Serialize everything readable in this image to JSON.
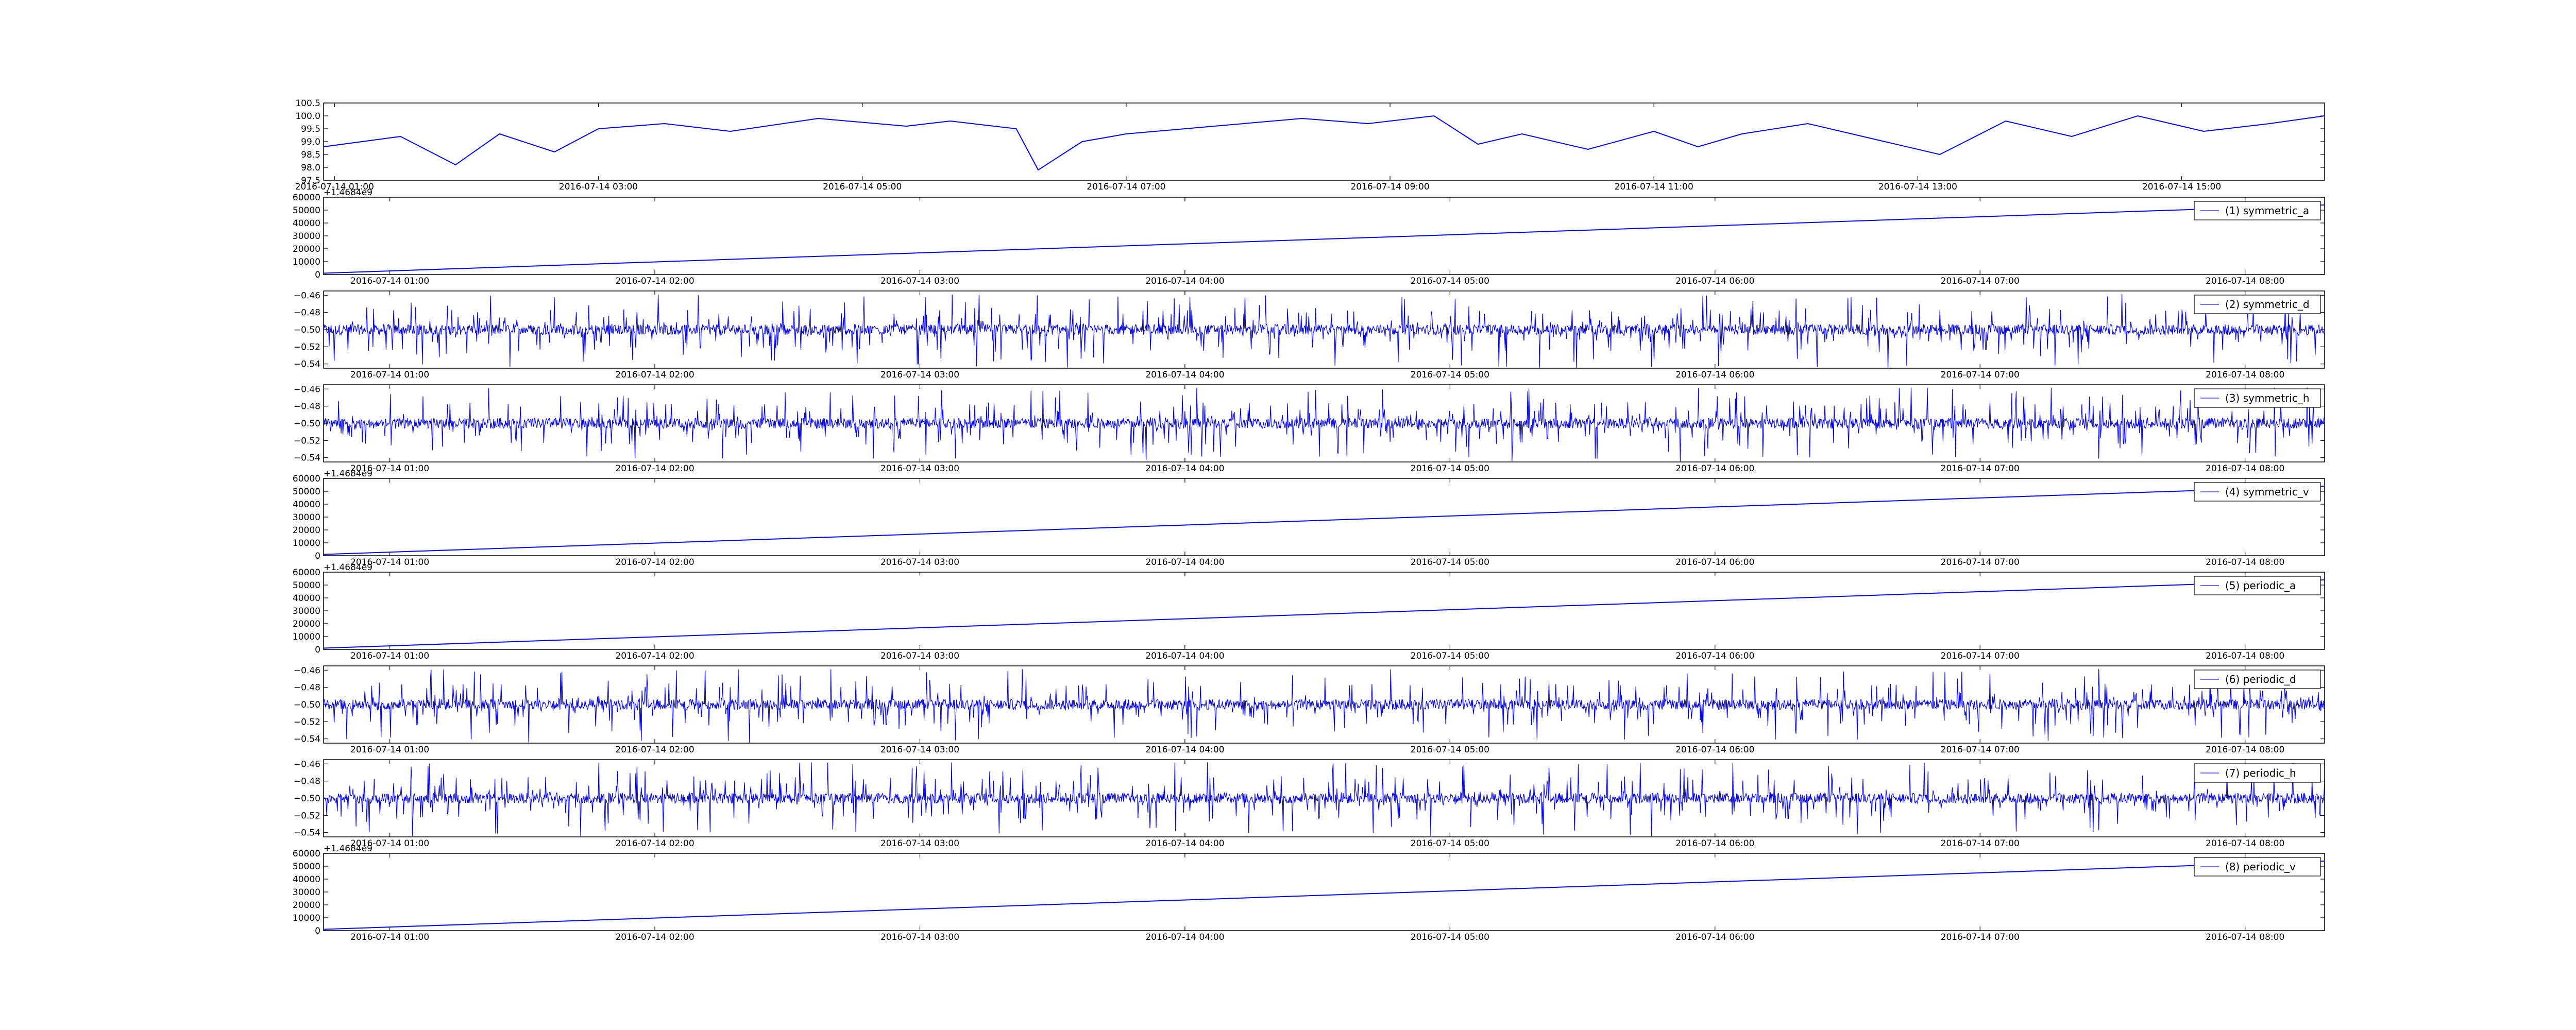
{
  "colors": {
    "line": "#0000ff",
    "legend_line": "#6f6fff",
    "axes": "#000000",
    "background": "#ffffff"
  },
  "chart_data": [
    {
      "type": "line",
      "panel": "top",
      "x_type": "datetime",
      "xlim": [
        "2016-07-14 00:55",
        "2016-07-14 16:05"
      ],
      "ylim": [
        97.5,
        100.5
      ],
      "y_ticks": [
        "97.5",
        "98.0",
        "98.5",
        "99.0",
        "99.5",
        "100.0",
        "100.5"
      ],
      "x_ticks": [
        "2016-07-14 01:00",
        "2016-07-14 03:00",
        "2016-07-14 05:00",
        "2016-07-14 07:00",
        "2016-07-14 09:00",
        "2016-07-14 11:00",
        "2016-07-14 13:00",
        "2016-07-14 15:00"
      ],
      "offset_label": "",
      "legend": "",
      "series": [
        {
          "approx": true,
          "x": [
            "2016-07-14 00:55",
            "2016-07-14 01:30",
            "2016-07-14 01:55",
            "2016-07-14 02:15",
            "2016-07-14 02:40",
            "2016-07-14 03:00",
            "2016-07-14 03:30",
            "2016-07-14 04:00",
            "2016-07-14 04:40",
            "2016-07-14 05:20",
            "2016-07-14 05:40",
            "2016-07-14 06:10",
            "2016-07-14 06:20",
            "2016-07-14 06:40",
            "2016-07-14 07:00",
            "2016-07-14 07:40",
            "2016-07-14 08:20",
            "2016-07-14 08:50",
            "2016-07-14 09:20",
            "2016-07-14 09:40",
            "2016-07-14 10:00",
            "2016-07-14 10:30",
            "2016-07-14 11:00",
            "2016-07-14 11:20",
            "2016-07-14 11:40",
            "2016-07-14 12:10",
            "2016-07-14 12:40",
            "2016-07-14 13:10",
            "2016-07-14 13:40",
            "2016-07-14 14:10",
            "2016-07-14 14:40",
            "2016-07-14 15:10",
            "2016-07-14 15:40",
            "2016-07-14 16:05"
          ],
          "y": [
            98.8,
            99.2,
            98.1,
            99.3,
            98.6,
            99.5,
            99.7,
            99.4,
            99.9,
            99.6,
            99.8,
            99.5,
            97.9,
            99.0,
            99.3,
            99.6,
            99.9,
            99.7,
            100.0,
            98.9,
            99.3,
            98.7,
            99.4,
            98.8,
            99.3,
            99.7,
            99.1,
            98.5,
            99.8,
            99.2,
            100.0,
            99.4,
            99.7,
            100.0
          ]
        }
      ]
    },
    {
      "type": "line",
      "panel": "(1) symmetric_a",
      "x_type": "datetime",
      "xlim": [
        "2016-07-14 00:45",
        "2016-07-14 08:18"
      ],
      "ylim": [
        0,
        60000
      ],
      "y_ticks": [
        "0",
        "10000",
        "20000",
        "30000",
        "40000",
        "50000",
        "60000"
      ],
      "x_ticks": [
        "2016-07-14 01:00",
        "2016-07-14 02:00",
        "2016-07-14 03:00",
        "2016-07-14 04:00",
        "2016-07-14 05:00",
        "2016-07-14 06:00",
        "2016-07-14 07:00",
        "2016-07-14 08:00"
      ],
      "offset_label": "+1.4684e9",
      "legend": "(1) symmetric_a",
      "series": [
        {
          "name": "(1) symmetric_a",
          "x": [
            "2016-07-14 00:45",
            "2016-07-14 08:18"
          ],
          "y": [
            1000,
            54000
          ]
        }
      ]
    },
    {
      "type": "line",
      "panel": "(2) symmetric_d",
      "x_type": "datetime",
      "xlim": [
        "2016-07-14 00:45",
        "2016-07-14 08:18"
      ],
      "ylim": [
        -0.545,
        -0.455
      ],
      "y_ticks": [
        "−0.54",
        "−0.52",
        "−0.50",
        "−0.48",
        "−0.46"
      ],
      "x_ticks": [
        "2016-07-14 01:00",
        "2016-07-14 02:00",
        "2016-07-14 03:00",
        "2016-07-14 04:00",
        "2016-07-14 05:00",
        "2016-07-14 06:00",
        "2016-07-14 07:00",
        "2016-07-14 08:00"
      ],
      "offset_label": "",
      "legend": "(2) symmetric_d",
      "series": [
        {
          "name": "(2) symmetric_d",
          "noise": {
            "center": -0.5,
            "range": [
              -0.545,
              -0.458
            ]
          }
        }
      ]
    },
    {
      "type": "line",
      "panel": "(3) symmetric_h",
      "x_type": "datetime",
      "xlim": [
        "2016-07-14 00:45",
        "2016-07-14 08:18"
      ],
      "ylim": [
        -0.545,
        -0.455
      ],
      "y_ticks": [
        "−0.54",
        "−0.52",
        "−0.50",
        "−0.48",
        "−0.46"
      ],
      "x_ticks": [
        "2016-07-14 01:00",
        "2016-07-14 02:00",
        "2016-07-14 03:00",
        "2016-07-14 04:00",
        "2016-07-14 05:00",
        "2016-07-14 06:00",
        "2016-07-14 07:00",
        "2016-07-14 08:00"
      ],
      "offset_label": "",
      "legend": "(3) symmetric_h",
      "series": [
        {
          "name": "(3) symmetric_h",
          "noise": {
            "center": -0.5,
            "range": [
              -0.545,
              -0.458
            ]
          }
        }
      ]
    },
    {
      "type": "line",
      "panel": "(4) symmetric_v",
      "x_type": "datetime",
      "xlim": [
        "2016-07-14 00:45",
        "2016-07-14 08:18"
      ],
      "ylim": [
        0,
        60000
      ],
      "y_ticks": [
        "0",
        "10000",
        "20000",
        "30000",
        "40000",
        "50000",
        "60000"
      ],
      "x_ticks": [
        "2016-07-14 01:00",
        "2016-07-14 02:00",
        "2016-07-14 03:00",
        "2016-07-14 04:00",
        "2016-07-14 05:00",
        "2016-07-14 06:00",
        "2016-07-14 07:00",
        "2016-07-14 08:00"
      ],
      "offset_label": "+1.4684e9",
      "legend": "(4) symmetric_v",
      "series": [
        {
          "name": "(4) symmetric_v",
          "x": [
            "2016-07-14 00:45",
            "2016-07-14 08:18"
          ],
          "y": [
            1000,
            54000
          ]
        }
      ]
    },
    {
      "type": "line",
      "panel": "(5) periodic_a",
      "x_type": "datetime",
      "xlim": [
        "2016-07-14 00:45",
        "2016-07-14 08:18"
      ],
      "ylim": [
        0,
        60000
      ],
      "y_ticks": [
        "0",
        "10000",
        "20000",
        "30000",
        "40000",
        "50000",
        "60000"
      ],
      "x_ticks": [
        "2016-07-14 01:00",
        "2016-07-14 02:00",
        "2016-07-14 03:00",
        "2016-07-14 04:00",
        "2016-07-14 05:00",
        "2016-07-14 06:00",
        "2016-07-14 07:00",
        "2016-07-14 08:00"
      ],
      "offset_label": "+1.4684e9",
      "legend": "(5) periodic_a",
      "series": [
        {
          "name": "(5) periodic_a",
          "x": [
            "2016-07-14 00:45",
            "2016-07-14 08:18"
          ],
          "y": [
            1000,
            54000
          ]
        }
      ]
    },
    {
      "type": "line",
      "panel": "(6) periodic_d",
      "x_type": "datetime",
      "xlim": [
        "2016-07-14 00:45",
        "2016-07-14 08:18"
      ],
      "ylim": [
        -0.545,
        -0.455
      ],
      "y_ticks": [
        "−0.54",
        "−0.52",
        "−0.50",
        "−0.48",
        "−0.46"
      ],
      "x_ticks": [
        "2016-07-14 01:00",
        "2016-07-14 02:00",
        "2016-07-14 03:00",
        "2016-07-14 04:00",
        "2016-07-14 05:00",
        "2016-07-14 06:00",
        "2016-07-14 07:00",
        "2016-07-14 08:00"
      ],
      "offset_label": "",
      "legend": "(6) periodic_d",
      "series": [
        {
          "name": "(6) periodic_d",
          "noise": {
            "center": -0.5,
            "range": [
              -0.545,
              -0.458
            ]
          }
        }
      ]
    },
    {
      "type": "line",
      "panel": "(7) periodic_h",
      "x_type": "datetime",
      "xlim": [
        "2016-07-14 00:45",
        "2016-07-14 08:18"
      ],
      "ylim": [
        -0.545,
        -0.455
      ],
      "y_ticks": [
        "−0.54",
        "−0.52",
        "−0.50",
        "−0.48",
        "−0.46"
      ],
      "x_ticks": [
        "2016-07-14 01:00",
        "2016-07-14 02:00",
        "2016-07-14 03:00",
        "2016-07-14 04:00",
        "2016-07-14 05:00",
        "2016-07-14 06:00",
        "2016-07-14 07:00",
        "2016-07-14 08:00"
      ],
      "offset_label": "",
      "legend": "(7) periodic_h",
      "series": [
        {
          "name": "(7) periodic_h",
          "noise": {
            "center": -0.5,
            "range": [
              -0.545,
              -0.458
            ]
          }
        }
      ]
    },
    {
      "type": "line",
      "panel": "(8) periodic_v",
      "x_type": "datetime",
      "xlim": [
        "2016-07-14 00:45",
        "2016-07-14 08:18"
      ],
      "ylim": [
        0,
        60000
      ],
      "y_ticks": [
        "0",
        "10000",
        "20000",
        "30000",
        "40000",
        "50000",
        "60000"
      ],
      "x_ticks": [
        "2016-07-14 01:00",
        "2016-07-14 02:00",
        "2016-07-14 03:00",
        "2016-07-14 04:00",
        "2016-07-14 05:00",
        "2016-07-14 06:00",
        "2016-07-14 07:00",
        "2016-07-14 08:00"
      ],
      "offset_label": "+1.4684e9",
      "legend": "(8) periodic_v",
      "series": [
        {
          "name": "(8) periodic_v",
          "x": [
            "2016-07-14 00:45",
            "2016-07-14 08:18"
          ],
          "y": [
            1000,
            54000
          ]
        }
      ]
    }
  ]
}
